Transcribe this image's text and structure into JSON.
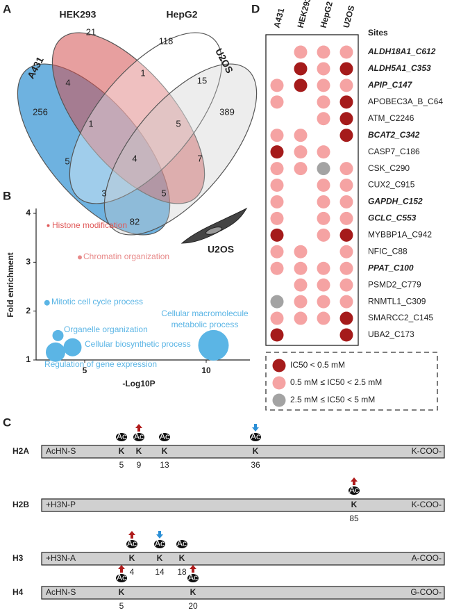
{
  "panel_labels": [
    "A",
    "B",
    "C",
    "D"
  ],
  "venn": {
    "sets": [
      "A431",
      "HEK293",
      "HepG2",
      "U2OS"
    ],
    "counts": [
      256,
      21,
      118,
      389,
      4,
      1,
      15,
      82,
      1,
      5,
      5,
      7,
      4,
      3,
      5
    ]
  },
  "chart_data": {
    "type": "scatter",
    "x_label": "-Log10P",
    "y_label": "Fold enrichment",
    "cell_label": "U2OS",
    "xlim": [
      3,
      11.8
    ],
    "ylim": [
      1,
      4.1
    ],
    "xticks": [
      5,
      10
    ],
    "yticks": [
      1,
      2,
      3,
      4
    ],
    "points": [
      {
        "label": [
          "Histone modification"
        ],
        "x": 3.5,
        "y": 3.75,
        "size": 2,
        "color": "#e05a5a"
      },
      {
        "label": [
          "Chromatin organization"
        ],
        "x": 4.8,
        "y": 3.1,
        "size": 3,
        "color": "#e88a8a"
      },
      {
        "label": [
          "Mitotic cell cycle process"
        ],
        "x": 3.45,
        "y": 2.17,
        "size": 4,
        "color": "#5bb5e5"
      },
      {
        "label": [
          "Organelle organization"
        ],
        "x": 3.9,
        "y": 1.5,
        "size": 8,
        "color": "#5bb5e5"
      },
      {
        "label": [
          "Cellular biosynthetic process"
        ],
        "x": 4.5,
        "y": 1.26,
        "size": 13,
        "color": "#5bb5e5"
      },
      {
        "label": [
          "Regulation of gene expression"
        ],
        "x": 3.8,
        "y": 1.16,
        "size": 14,
        "color": "#5bb5e5"
      },
      {
        "label": [
          "Cellular macromolecule",
          "metabolic process"
        ],
        "x": 10.3,
        "y": 1.3,
        "size": 22,
        "color": "#5bb5e5"
      }
    ]
  },
  "histones": [
    {
      "name": "H2A",
      "start": "AcHN-S",
      "end": "K-COO-",
      "sites": [
        {
          "residue": "K",
          "number": 5,
          "mod": "Ac",
          "arrow": null
        },
        {
          "residue": "K",
          "number": 9,
          "mod": "Ac",
          "arrow": "up"
        },
        {
          "residue": "K",
          "number": 13,
          "mod": "Ac",
          "arrow": null
        },
        {
          "residue": "K",
          "number": 36,
          "mod": "Ac",
          "arrow": "down"
        }
      ]
    },
    {
      "name": "H2B",
      "start": "+H3N-P",
      "end": "K-COO-",
      "sites": [
        {
          "residue": "K",
          "number": 85,
          "mod": "Ac",
          "arrow": "up"
        }
      ]
    },
    {
      "name": "H3",
      "start": "+H3N-A",
      "end": "A-COO-",
      "sites": [
        {
          "residue": "K",
          "number": 4,
          "mod": "Ac",
          "arrow": "up"
        },
        {
          "residue": "K",
          "number": 14,
          "mod": "Ac",
          "arrow": "down"
        },
        {
          "residue": "K",
          "number": 18,
          "mod": "Ac",
          "arrow": null
        }
      ]
    },
    {
      "name": "H4",
      "start": "AcHN-S",
      "end": "G-COO-",
      "sites": [
        {
          "residue": "K",
          "number": 5,
          "mod": "Ac",
          "arrow": "up"
        },
        {
          "residue": "K",
          "number": 20,
          "mod": "Ac",
          "arrow": "up"
        }
      ]
    }
  ],
  "dot_matrix": {
    "columns": [
      "A431",
      "HEK293",
      "HepG2",
      "U2OS"
    ],
    "sites_header": "Sites",
    "legend": [
      {
        "label": "IC50 < 0.5 mM",
        "color": "#a51b1b"
      },
      {
        "label": "0.5 mM ≤ IC50 < 2.5 mM",
        "color": "#f5a3a3"
      },
      {
        "label": "2.5 mM ≤ IC50 < 5 mM",
        "color": "#a3a3a3"
      }
    ],
    "rows": [
      {
        "site": "ALDH18A1_C612",
        "bold": true,
        "values": [
          null,
          1,
          1,
          1
        ]
      },
      {
        "site": "ALDH5A1_C353",
        "bold": true,
        "values": [
          null,
          0,
          1,
          0
        ]
      },
      {
        "site": "APIP_C147",
        "bold": true,
        "values": [
          1,
          0,
          1,
          1
        ]
      },
      {
        "site": "APOBEC3A_B_C64",
        "bold": false,
        "values": [
          1,
          null,
          1,
          0
        ]
      },
      {
        "site": "ATM_C2246",
        "bold": false,
        "values": [
          null,
          null,
          1,
          0
        ]
      },
      {
        "site": "BCAT2_C342",
        "bold": true,
        "values": [
          1,
          1,
          null,
          0
        ]
      },
      {
        "site": "CASP7_C186",
        "bold": false,
        "values": [
          0,
          1,
          1,
          null
        ]
      },
      {
        "site": "CSK_C290",
        "bold": false,
        "values": [
          1,
          1,
          2,
          1
        ]
      },
      {
        "site": "CUX2_C915",
        "bold": false,
        "values": [
          1,
          null,
          1,
          1
        ]
      },
      {
        "site": "GAPDH_C152",
        "bold": true,
        "values": [
          1,
          null,
          1,
          1
        ]
      },
      {
        "site": "GCLC_C553",
        "bold": true,
        "values": [
          1,
          null,
          1,
          1
        ]
      },
      {
        "site": "MYBBP1A_C942",
        "bold": false,
        "values": [
          0,
          null,
          1,
          0
        ]
      },
      {
        "site": "NFIC_C88",
        "bold": false,
        "values": [
          1,
          1,
          null,
          1
        ]
      },
      {
        "site": "PPAT_C100",
        "bold": true,
        "values": [
          1,
          1,
          1,
          1
        ]
      },
      {
        "site": "PSMD2_C779",
        "bold": false,
        "values": [
          null,
          1,
          1,
          1
        ]
      },
      {
        "site": "RNMTL1_C309",
        "bold": false,
        "values": [
          2,
          1,
          1,
          1
        ]
      },
      {
        "site": "SMARCC2_C145",
        "bold": false,
        "values": [
          1,
          1,
          1,
          0
        ]
      },
      {
        "site": "UBA2_C173",
        "bold": false,
        "values": [
          0,
          null,
          null,
          0
        ]
      }
    ]
  }
}
